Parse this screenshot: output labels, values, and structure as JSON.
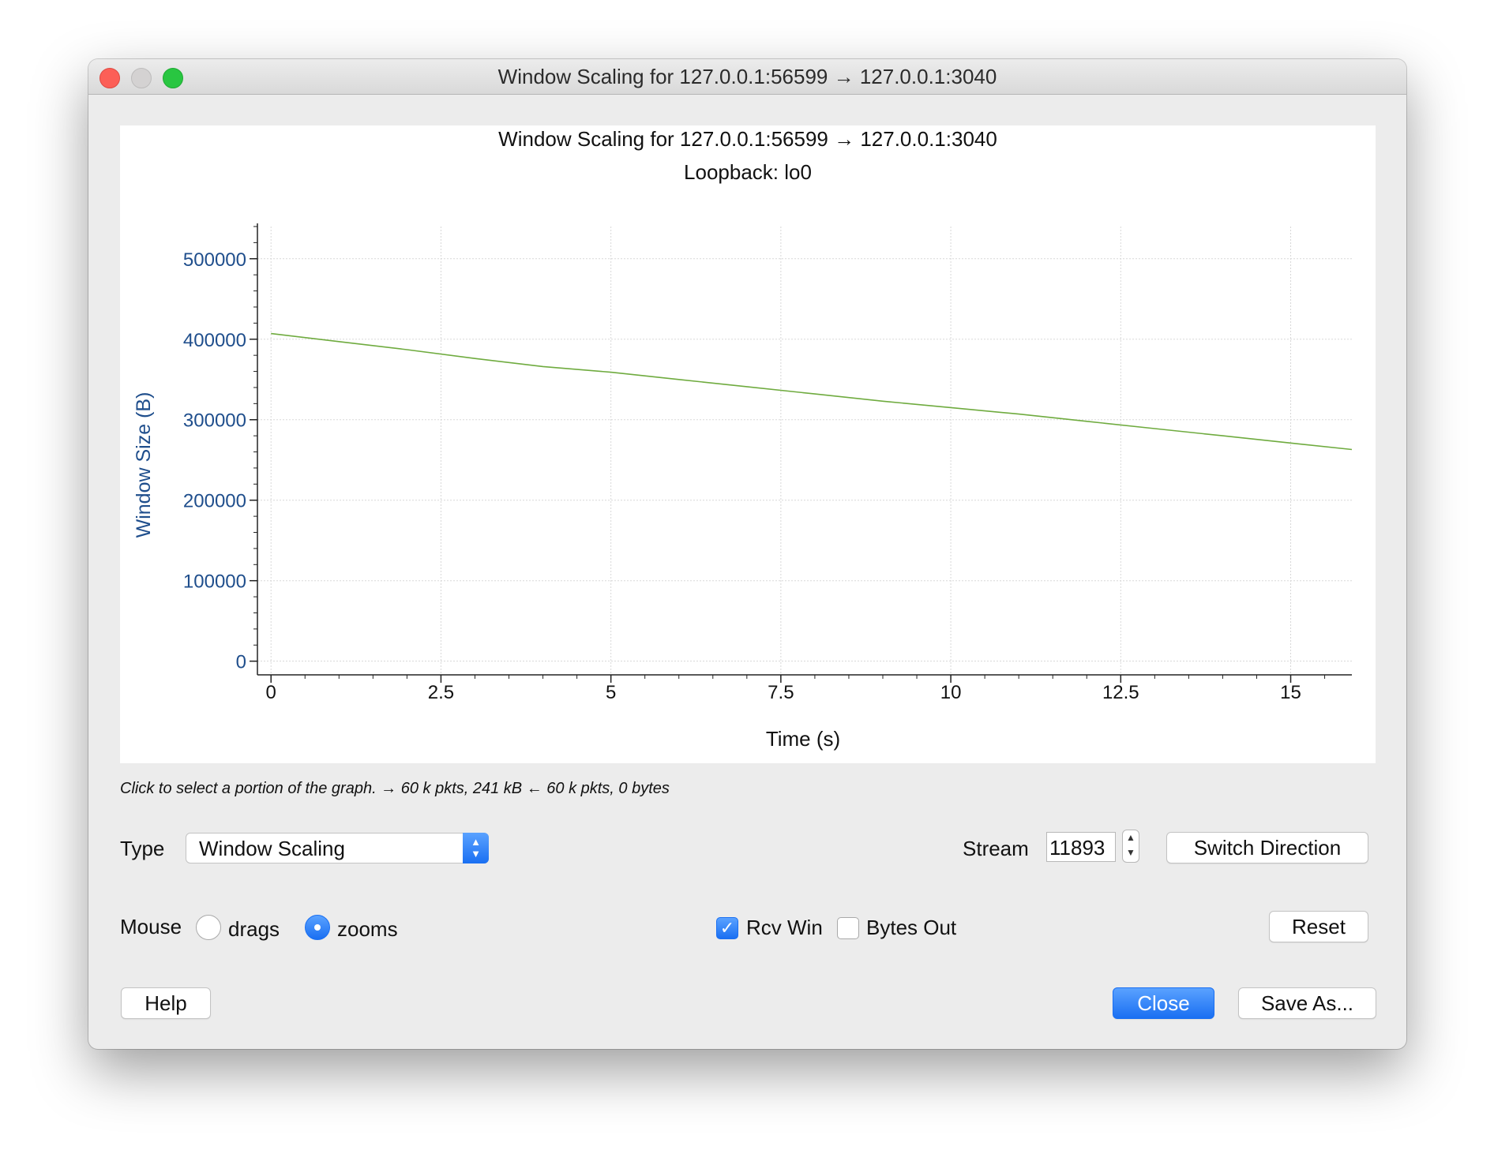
{
  "window": {
    "title": "Window Scaling for 127.0.0.1:56599 → 127.0.0.1:3040"
  },
  "chart_data": {
    "type": "line",
    "title": "Window Scaling for 127.0.0.1:56599 → 127.0.0.1:3040",
    "subtitle": "Loopback: lo0",
    "xlabel": "Time (s)",
    "ylabel": "Window Size (B)",
    "xlim": [
      -0.2,
      15.9
    ],
    "ylim": [
      -17000,
      540000
    ],
    "xticks": [
      "0",
      "2.5",
      "5",
      "7.5",
      "10",
      "12.5",
      "15"
    ],
    "yticks": [
      "0",
      "100000",
      "200000",
      "300000",
      "400000",
      "500000"
    ],
    "grid": true,
    "series": [
      {
        "color": "#6fab3f",
        "x": [
          0,
          1,
          2,
          3,
          4,
          5,
          6,
          7,
          8,
          9,
          10,
          11,
          12,
          13,
          14,
          15,
          15.9
        ],
        "y": [
          407000,
          397000,
          387000,
          376000,
          366000,
          359000,
          350000,
          341000,
          332000,
          323000,
          315000,
          307000,
          298000,
          289000,
          280000,
          271000,
          263000
        ]
      }
    ]
  },
  "hint": "Click to select a portion of the graph. → 60 k pkts, 241 kB ← 60 k pkts, 0 bytes",
  "controls": {
    "type_label": "Type",
    "type_value": "Window Scaling",
    "stream_label": "Stream",
    "stream_value": "11893",
    "switch_direction": "Switch Direction",
    "mouse_label": "Mouse",
    "radio_drags": "drags",
    "radio_zooms": "zooms",
    "mouse_mode": "zooms",
    "check_rcv_win": "Rcv Win",
    "rcv_win_checked": true,
    "check_bytes_out": "Bytes Out",
    "bytes_out_checked": false,
    "reset": "Reset",
    "help": "Help",
    "close": "Close",
    "save_as": "Save As..."
  },
  "colors": {
    "accent": "#1a6ff2",
    "axis_text": "#1f4e8c",
    "series": "#6fab3f"
  }
}
